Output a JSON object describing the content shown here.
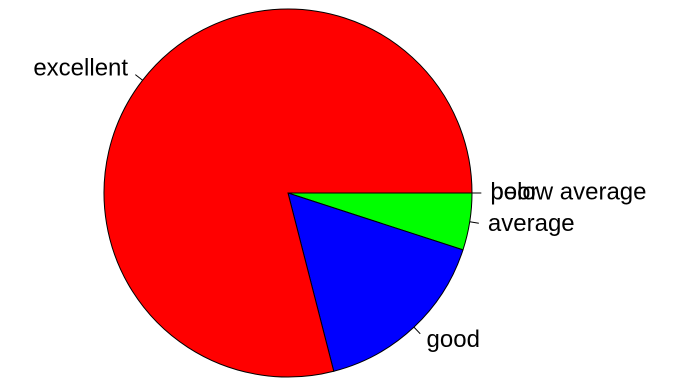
{
  "chart_data": {
    "type": "pie",
    "title": "",
    "slices": [
      {
        "label": "poor",
        "value": 0.0,
        "color": "#FFFFFF"
      },
      {
        "label": "below average",
        "value": 0.0,
        "color": "#FFFFFF"
      },
      {
        "label": "average",
        "value": 5.0,
        "color": "#00FF00"
      },
      {
        "label": "good",
        "value": 16.0,
        "color": "#0000FF"
      },
      {
        "label": "excellent",
        "value": 79.0,
        "color": "#FF0000"
      }
    ],
    "start": "3 o'clock",
    "direction": "clockwise",
    "legend": "none"
  }
}
